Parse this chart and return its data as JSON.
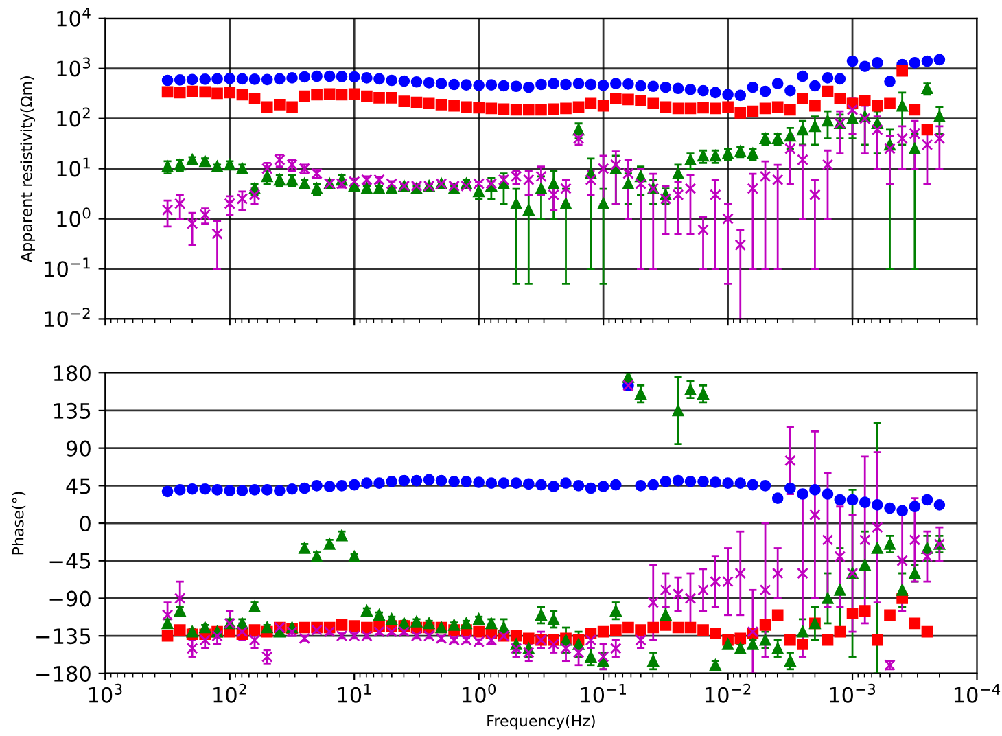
{
  "chart_data": [
    {
      "type": "scatter",
      "ylabel": "Apparent resistivity(Ωm)",
      "log": "xy",
      "grid": true,
      "tick_labels": "y",
      "xlim": [
        1000,
        0.0001
      ],
      "ylim": [
        0.01,
        10000
      ],
      "xticks": [
        {
          "value": 1000,
          "label": null
        },
        {
          "value": 100,
          "label": null
        },
        {
          "value": 10,
          "label": null
        },
        {
          "value": 1,
          "label": null
        },
        {
          "value": 0.1,
          "label": null
        },
        {
          "value": 0.01,
          "label": null
        },
        {
          "value": 0.001,
          "label": null
        },
        {
          "value": 0.0001,
          "label": null
        }
      ],
      "yticks": [
        {
          "value": 0.01,
          "label": "10$^{−2}$"
        },
        {
          "value": 0.1,
          "label": "10$^{−1}$"
        },
        {
          "value": 1,
          "label": "10$^{0}$"
        },
        {
          "value": 10,
          "label": "10$^{1}$"
        },
        {
          "value": 100,
          "label": "10$^{2}$"
        },
        {
          "value": 1000,
          "label": "10$^{3}$"
        },
        {
          "value": 10000,
          "label": "10$^{4}$"
        }
      ],
      "x": [
        316,
        251,
        200,
        158,
        126,
        100,
        79.4,
        63.1,
        50.1,
        39.8,
        31.6,
        25.1,
        20,
        15.8,
        12.6,
        10,
        7.94,
        6.31,
        5.01,
        3.98,
        3.16,
        2.51,
        2,
        1.58,
        1.26,
        1,
        0.794,
        0.631,
        0.501,
        0.398,
        0.316,
        0.251,
        0.2,
        0.158,
        0.126,
        0.1,
        0.0794,
        0.0631,
        0.0501,
        0.0398,
        0.0316,
        0.0251,
        0.02,
        0.0158,
        0.0126,
        0.01,
        0.00794,
        0.00631,
        0.00501,
        0.00398,
        0.00316,
        0.00251,
        0.002,
        0.00158,
        0.00126,
        0.001,
        0.000794,
        0.000631,
        0.000501,
        0.000398,
        0.000316,
        0.000251,
        0.0002
      ],
      "series": [
        {
          "color": "#0000ff",
          "marker": "circle",
          "values": [
            580,
            590,
            600,
            610,
            620,
            630,
            620,
            610,
            600,
            620,
            650,
            680,
            700,
            700,
            690,
            680,
            650,
            620,
            580,
            560,
            540,
            520,
            500,
            480,
            470,
            460,
            470,
            450,
            440,
            420,
            480,
            500,
            480,
            500,
            480,
            460,
            500,
            490,
            450,
            440,
            420,
            400,
            380,
            360,
            330,
            300,
            290,
            420,
            350,
            500,
            360,
            700,
            450,
            650,
            620,
            1400,
            1100,
            1300,
            550,
            1200,
            1300,
            1400,
            1500
          ]
        },
        {
          "color": "#ff0000",
          "marker": "square",
          "values": [
            340,
            330,
            350,
            340,
            320,
            330,
            300,
            250,
            170,
            190,
            170,
            280,
            300,
            310,
            300,
            310,
            280,
            260,
            260,
            220,
            210,
            200,
            190,
            180,
            170,
            165,
            160,
            155,
            150,
            150,
            150,
            155,
            160,
            170,
            200,
            180,
            250,
            240,
            230,
            200,
            170,
            160,
            160,
            165,
            160,
            170,
            130,
            140,
            160,
            170,
            150,
            250,
            180,
            350,
            250,
            200,
            230,
            180,
            200,
            900,
            150,
            60,
            null
          ]
        },
        {
          "color": "#008000",
          "marker": "triangle",
          "values": [
            11,
            12,
            15,
            14,
            11,
            12,
            10,
            4,
            7,
            6,
            6,
            5,
            4,
            5,
            6,
            4.5,
            4,
            4,
            4,
            4.5,
            4,
            4.5,
            5,
            4,
            5,
            3.5,
            4.5,
            5,
            2,
            1.5,
            4,
            5,
            2,
            60,
            8,
            2,
            10,
            5,
            7,
            4,
            3,
            8,
            15,
            18,
            18,
            20,
            22,
            20,
            40,
            40,
            45,
            60,
            70,
            90,
            80,
            100,
            110,
            80,
            30,
            180,
            25,
            400,
            110
          ],
          "errors": [
            3,
            3,
            2,
            2,
            1,
            2,
            2,
            1,
            2,
            1.5,
            1.5,
            1,
            1,
            1,
            1.5,
            0.5,
            0.5,
            0.5,
            0.5,
            0.5,
            0.5,
            0.5,
            0.5,
            0.5,
            1,
            1,
            2,
            3,
            1.95,
            1.45,
            3,
            4,
            1.95,
            20,
            7.9,
            1.95,
            8,
            3,
            4,
            2,
            1,
            4,
            5,
            5,
            5,
            5,
            5,
            5,
            10,
            10,
            20,
            30,
            40,
            50,
            40,
            60,
            80,
            60,
            29.9,
            150,
            24.9,
            100,
            60
          ]
        },
        {
          "color": "#bf00bf",
          "marker": "cross",
          "values": [
            1.5,
            2,
            0.8,
            1.2,
            0.5,
            2,
            2.5,
            3,
            10,
            15,
            12,
            10,
            8,
            5,
            5,
            5.5,
            6,
            6,
            5,
            4.5,
            4.5,
            4.5,
            5,
            4.5,
            4.5,
            5,
            5,
            6,
            7,
            6,
            7,
            3,
            4,
            40,
            6,
            10,
            12,
            8,
            5,
            4,
            2.5,
            3,
            4,
            0.6,
            3,
            1,
            0.3,
            4,
            7,
            6,
            25,
            15,
            3,
            12,
            80,
            150,
            100,
            60,
            25,
            40,
            50,
            30,
            40
          ],
          "errors": [
            0.8,
            1,
            0.5,
            0.4,
            0.4,
            0.8,
            1,
            1,
            3,
            4,
            3,
            2,
            1.5,
            1,
            0.8,
            0.8,
            1,
            0.8,
            0.6,
            0.5,
            0.5,
            0.5,
            0.5,
            0.5,
            0.5,
            0.5,
            0.6,
            1,
            2,
            3,
            4,
            1.5,
            2,
            10,
            3,
            8,
            10,
            7,
            4.9,
            3.9,
            2,
            2.5,
            3.5,
            0.5,
            2.9,
            0.95,
            0.29,
            3.9,
            6.9,
            5.9,
            20,
            14,
            2.9,
            11,
            60,
            100,
            80,
            50,
            20,
            30,
            40,
            25,
            30
          ]
        }
      ]
    },
    {
      "type": "scatter",
      "xlabel": "Frequency(Hz)",
      "ylabel": "Phase(°)",
      "log": "x",
      "grid": "y",
      "xlim": [
        1000,
        0.0001
      ],
      "ylim": [
        -180,
        180
      ],
      "xticks": [
        {
          "value": 1000,
          "label": "10$^{3}$"
        },
        {
          "value": 100,
          "label": "10$^{2}$"
        },
        {
          "value": 10,
          "label": "10$^{1}$"
        },
        {
          "value": 1,
          "label": "10$^{0}$"
        },
        {
          "value": 0.1,
          "label": "10$^{−1}$"
        },
        {
          "value": 0.01,
          "label": "10$^{−2}$"
        },
        {
          "value": 0.001,
          "label": "10$^{−3}$"
        },
        {
          "value": 0.0001,
          "label": "10$^{−4}$"
        }
      ],
      "yticks": [
        180,
        135,
        90,
        45,
        0,
        {
          "value": -45,
          "label": "−45"
        },
        {
          "value": -90,
          "label": "−90"
        },
        {
          "value": -135,
          "label": "−135"
        },
        {
          "value": -180,
          "label": "−180"
        }
      ],
      "x": [
        316,
        251,
        200,
        158,
        126,
        100,
        79.4,
        63.1,
        50.1,
        39.8,
        31.6,
        25.1,
        20,
        15.8,
        12.6,
        10,
        7.94,
        6.31,
        5.01,
        3.98,
        3.16,
        2.51,
        2,
        1.58,
        1.26,
        1,
        0.794,
        0.631,
        0.501,
        0.398,
        0.316,
        0.251,
        0.2,
        0.158,
        0.126,
        0.1,
        0.0794,
        0.0631,
        0.0501,
        0.0398,
        0.0316,
        0.0251,
        0.02,
        0.0158,
        0.0126,
        0.01,
        0.00794,
        0.00631,
        0.00501,
        0.00398,
        0.00316,
        0.00251,
        0.002,
        0.00158,
        0.00126,
        0.001,
        0.000794,
        0.000631,
        0.000501,
        0.000398,
        0.000316,
        0.000251,
        0.0002
      ],
      "series": [
        {
          "color": "#0000ff",
          "marker": "circle",
          "values": [
            38,
            40,
            41,
            41,
            40,
            39,
            39,
            40,
            40,
            39,
            41,
            42,
            45,
            44,
            45,
            46,
            48,
            48,
            50,
            51,
            51,
            52,
            51,
            50,
            50,
            49,
            48,
            48,
            48,
            47,
            46,
            44,
            48,
            45,
            42,
            44,
            46,
            165,
            45,
            46,
            50,
            51,
            50,
            50,
            49,
            48,
            48,
            46,
            45,
            30,
            42,
            35,
            40,
            35,
            28,
            28,
            25,
            22,
            18,
            15,
            20,
            28,
            22
          ]
        },
        {
          "color": "#ff0000",
          "marker": "square",
          "values": [
            -135,
            -128,
            -133,
            -133,
            -130,
            -130,
            -133,
            -128,
            -130,
            -125,
            -126,
            -125,
            -125,
            -125,
            -122,
            -123,
            -125,
            -123,
            -123,
            -123,
            -125,
            -125,
            -125,
            -128,
            -128,
            -130,
            -132,
            -135,
            -135,
            -138,
            -140,
            -140,
            -138,
            -140,
            -132,
            -130,
            -128,
            -125,
            -128,
            -125,
            -122,
            -125,
            -125,
            -128,
            -132,
            -140,
            -138,
            -132,
            -122,
            -110,
            -140,
            -145,
            -120,
            -140,
            -130,
            -108,
            -105,
            -140,
            -110,
            -90,
            -120,
            -130,
            null
          ]
        },
        {
          "color": "#008000",
          "marker": "triangle",
          "values": [
            -120,
            -105,
            -130,
            -125,
            -130,
            -120,
            -120,
            -100,
            -125,
            -130,
            -125,
            -30,
            -40,
            -25,
            -15,
            -40,
            -105,
            -110,
            -115,
            -120,
            -118,
            -120,
            -125,
            -122,
            -120,
            -115,
            -120,
            -125,
            -145,
            -150,
            -110,
            -115,
            -140,
            -145,
            -160,
            -165,
            -105,
            175,
            155,
            -165,
            -110,
            135,
            160,
            155,
            -170,
            -145,
            -150,
            -145,
            -140,
            -150,
            -165,
            -130,
            -120,
            -90,
            -80,
            -60,
            -50,
            -30,
            -25,
            -80,
            -60,
            -30,
            -25
          ],
          "errors": [
            5,
            5,
            3,
            3,
            3,
            5,
            5,
            5,
            3,
            3,
            3,
            5,
            5,
            5,
            5,
            3,
            3,
            3,
            3,
            3,
            3,
            3,
            3,
            3,
            3,
            3,
            5,
            10,
            10,
            10,
            10,
            10,
            15,
            15,
            10,
            10,
            10,
            5,
            10,
            10,
            10,
            40,
            10,
            10,
            5,
            5,
            5,
            5,
            10,
            10,
            10,
            15,
            20,
            30,
            50,
            100,
            40,
            150,
            10,
            20,
            10,
            15,
            10
          ]
        },
        {
          "color": "#bf00bf",
          "marker": "cross",
          "values": [
            -110,
            -90,
            -150,
            -140,
            -135,
            -120,
            -130,
            -140,
            -160,
            -125,
            -130,
            -138,
            -128,
            -130,
            -135,
            -135,
            -135,
            -130,
            -130,
            -130,
            -135,
            -135,
            -138,
            -140,
            -140,
            -142,
            -140,
            -135,
            -150,
            -155,
            -140,
            -145,
            -150,
            -155,
            -140,
            -160,
            -150,
            165,
            -140,
            -95,
            -80,
            -85,
            -90,
            -80,
            -70,
            -70,
            -60,
            -130,
            -80,
            -60,
            75,
            -60,
            10,
            -20,
            -40,
            -60,
            -20,
            -5,
            -170,
            -45,
            -20,
            -40,
            -25
          ],
          "errors": [
            15,
            20,
            10,
            10,
            10,
            15,
            10,
            10,
            8,
            5,
            5,
            3,
            3,
            3,
            3,
            3,
            3,
            3,
            3,
            3,
            3,
            3,
            3,
            3,
            3,
            3,
            5,
            5,
            10,
            10,
            10,
            10,
            15,
            15,
            10,
            15,
            10,
            5,
            10,
            45,
            20,
            20,
            30,
            25,
            30,
            40,
            50,
            50,
            80,
            30,
            40,
            100,
            100,
            80,
            60,
            70,
            100,
            90,
            5,
            60,
            50,
            30,
            20
          ]
        }
      ]
    }
  ]
}
